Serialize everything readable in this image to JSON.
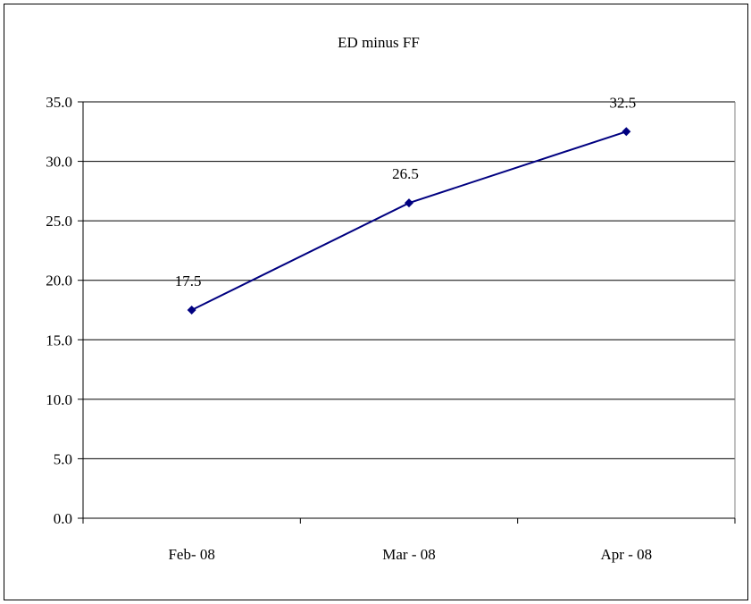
{
  "chart_data": {
    "type": "line",
    "title": "ED minus FF",
    "xlabel": "",
    "ylabel": "",
    "categories": [
      "Feb- 08",
      "Mar - 08",
      "Apr - 08"
    ],
    "series": [
      {
        "values": [
          17.5,
          26.5,
          32.5
        ],
        "data_labels": [
          "17.5",
          "26.5",
          "32.5"
        ],
        "color": "#000080",
        "marker": "diamond"
      }
    ],
    "ylim": [
      0,
      35
    ],
    "y_ticks": [
      "0.0",
      "5.0",
      "10.0",
      "15.0",
      "20.0",
      "25.0",
      "30.0",
      "35.0"
    ],
    "grid": "horizontal",
    "legend": "none"
  }
}
